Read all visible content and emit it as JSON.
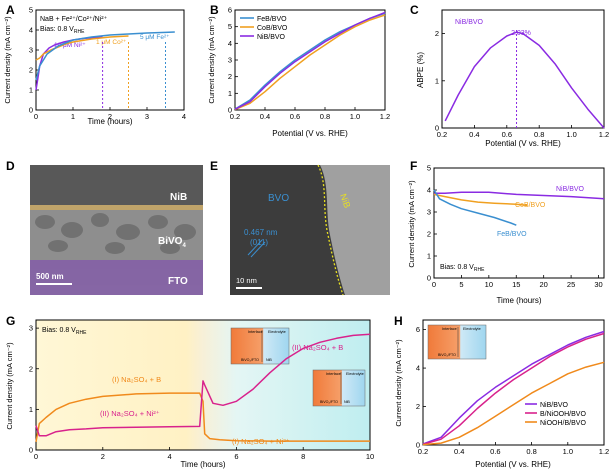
{
  "panels": {
    "A": {
      "letter": "A",
      "legend": [
        "NaB + Fe²⁺/Co²⁺/Ni²⁺",
        "Bias: 0.8 V"
      ],
      "legend_sub": "RHE",
      "labels": [
        "10 μM Ni²⁺",
        "1 μM Co²⁺",
        "5 μM Fe²⁺"
      ],
      "xlabel": "Time (hours)",
      "ylabel": "Current density (mA cm⁻²)",
      "xticks": [
        "0",
        "1",
        "2",
        "3",
        "4"
      ],
      "yticks": [
        "0",
        "1",
        "2",
        "3",
        "4",
        "5"
      ]
    },
    "B": {
      "letter": "B",
      "legend": [
        "FeB/BVO",
        "CoB/BVO",
        "NiB/BVO"
      ],
      "xlabel": "Potential (V vs. RHE)",
      "ylabel": "Current density (mA cm⁻²)",
      "xticks": [
        "0.2",
        "0.4",
        "0.6",
        "0.8",
        "1.0",
        "1.2"
      ],
      "yticks": [
        "0",
        "1",
        "2",
        "3",
        "4",
        "5",
        "6"
      ]
    },
    "C": {
      "letter": "C",
      "label": "NiB/BVO",
      "peak_label": "2.03%",
      "xlabel": "Potential (V vs. RHE)",
      "ylabel": "ABPE (%)",
      "xticks": [
        "0.2",
        "0.4",
        "0.6",
        "0.8",
        "1.0",
        "1.2"
      ],
      "yticks": [
        "0",
        "1",
        "2"
      ]
    },
    "D": {
      "letter": "D",
      "labels": [
        "NiB",
        "BiVO",
        "FTO"
      ],
      "bivo_sub": "4",
      "scale": "500 nm"
    },
    "E": {
      "letter": "E",
      "labels": [
        "BVO",
        "NiB",
        "0.467 nm",
        "(011)"
      ],
      "scale": "10 nm"
    },
    "F": {
      "letter": "F",
      "labels": [
        "NiB/BVO",
        "CoB/BVO",
        "FeB/BVO"
      ],
      "bias": "Bias: 0.8 V",
      "bias_sub": "RHE",
      "xlabel": "Time (hours)",
      "ylabel": "Current density (mA cm⁻²)",
      "xticks": [
        "0",
        "5",
        "10",
        "15",
        "20",
        "25",
        "30"
      ],
      "yticks": [
        "0",
        "1",
        "2",
        "3",
        "4",
        "5"
      ]
    },
    "G": {
      "letter": "G",
      "bias": "Bias: 0.8 V",
      "bias_sub": "RHE",
      "labels": [
        "(I) Na₂SO₄ + B",
        "(II) Na₂SO₄ + Ni²⁺",
        "(II) Na₂SO₄ + B",
        "(I) Na₂SO₄ + Ni²⁺"
      ],
      "inset_labels": [
        "Interface",
        "Electrolyte",
        "BiVO₄/FTO",
        "NiB"
      ],
      "xlabel": "Time (hours)",
      "ylabel": "Current density (mA cm⁻²)",
      "xticks": [
        "0",
        "2",
        "4",
        "6",
        "8",
        "10"
      ],
      "yticks": [
        "0",
        "1",
        "2",
        "3"
      ]
    },
    "H": {
      "letter": "H",
      "legend": [
        "NiB/BVO",
        "B/NiOOH/BVO",
        "NiOOH/B/BVO"
      ],
      "inset_labels": [
        "Interface",
        "Electrolyte",
        "BiVO₄/FTO"
      ],
      "xlabel": "Potential (V vs. RHE)",
      "ylabel": "Current density (mA cm⁻²)",
      "xticks": [
        "0.2",
        "0.4",
        "0.6",
        "0.8",
        "1.0",
        "1.2"
      ],
      "yticks": [
        "0",
        "2",
        "4",
        "6"
      ]
    }
  },
  "colors": {
    "fe": "#3a8fd0",
    "co": "#f0a020",
    "ni": "#8a2be2",
    "g_orange": "#f08a1c",
    "g_magenta": "#d8228c"
  },
  "chart_data": [
    {
      "panel": "A",
      "type": "line",
      "xlim": [
        0,
        4
      ],
      "ylim": [
        0,
        5
      ],
      "series": [
        {
          "name": "10 μM Ni²⁺",
          "color": "#8a2be2",
          "x": [
            0,
            0.05,
            0.1,
            0.2,
            0.35,
            0.5,
            0.75,
            1.0,
            1.3,
            1.6,
            1.8
          ],
          "y": [
            1.0,
            1.6,
            2.2,
            2.8,
            3.1,
            3.25,
            3.4,
            3.5,
            3.58,
            3.62,
            3.65
          ]
        },
        {
          "name": "1 μM Co²⁺",
          "color": "#f0a020",
          "x": [
            0,
            0.1,
            0.2,
            0.4,
            0.6,
            0.8,
            1.0,
            1.5,
            2.0,
            2.5
          ],
          "y": [
            2.5,
            2.6,
            2.8,
            3.0,
            3.15,
            3.3,
            3.4,
            3.55,
            3.65,
            3.7
          ]
        },
        {
          "name": "5 μM Fe²⁺",
          "color": "#3a8fd0",
          "x": [
            0,
            0.1,
            0.3,
            0.6,
            1.0,
            1.5,
            2.0,
            2.5,
            3.0,
            3.5,
            3.75
          ],
          "y": [
            1.5,
            2.2,
            2.8,
            3.2,
            3.5,
            3.65,
            3.75,
            3.8,
            3.85,
            3.88,
            3.9
          ]
        }
      ],
      "vlines": [
        {
          "x": 1.8,
          "color": "#8a2be2"
        },
        {
          "x": 2.5,
          "color": "#f0a020"
        },
        {
          "x": 3.5,
          "color": "#3a8fd0"
        }
      ]
    },
    {
      "panel": "B",
      "type": "line",
      "xlim": [
        0.2,
        1.2
      ],
      "ylim": [
        0,
        6
      ],
      "series": [
        {
          "name": "FeB/BVO",
          "color": "#3a8fd0",
          "x": [
            0.2,
            0.3,
            0.4,
            0.5,
            0.6,
            0.7,
            0.8,
            0.9,
            1.0,
            1.1,
            1.2
          ],
          "y": [
            0.05,
            0.6,
            1.5,
            2.3,
            3.0,
            3.6,
            4.2,
            4.7,
            5.1,
            5.5,
            5.8
          ]
        },
        {
          "name": "CoB/BVO",
          "color": "#f0a020",
          "x": [
            0.2,
            0.3,
            0.4,
            0.5,
            0.6,
            0.7,
            0.8,
            0.9,
            1.0,
            1.1,
            1.2
          ],
          "y": [
            0.03,
            0.4,
            1.1,
            1.9,
            2.6,
            3.3,
            3.9,
            4.5,
            5.0,
            5.4,
            5.7
          ]
        },
        {
          "name": "NiB/BVO",
          "color": "#8a2be2",
          "x": [
            0.2,
            0.3,
            0.4,
            0.5,
            0.6,
            0.7,
            0.8,
            0.9,
            1.0,
            1.1,
            1.2
          ],
          "y": [
            0.05,
            0.5,
            1.4,
            2.2,
            2.9,
            3.5,
            4.1,
            4.6,
            5.1,
            5.5,
            5.85
          ]
        }
      ]
    },
    {
      "panel": "C",
      "type": "line",
      "xlim": [
        0.2,
        1.2
      ],
      "ylim": [
        0,
        2.5
      ],
      "series": [
        {
          "name": "NiB/BVO",
          "color": "#8a2be2",
          "x": [
            0.22,
            0.3,
            0.4,
            0.5,
            0.6,
            0.66,
            0.7,
            0.8,
            0.9,
            1.0,
            1.1,
            1.2
          ],
          "y": [
            0.15,
            0.7,
            1.3,
            1.7,
            1.95,
            2.03,
            2.0,
            1.75,
            1.35,
            0.85,
            0.4,
            0.0
          ]
        }
      ],
      "vlines": [
        {
          "x": 0.66,
          "color": "#8a2be2"
        }
      ]
    },
    {
      "panel": "F",
      "type": "line",
      "xlim": [
        0,
        31
      ],
      "ylim": [
        0,
        5
      ],
      "series": [
        {
          "name": "NiB/BVO",
          "color": "#8a2be2",
          "x": [
            0,
            2,
            5,
            10,
            15,
            20,
            25,
            30,
            31
          ],
          "y": [
            3.85,
            3.85,
            3.9,
            3.9,
            3.8,
            3.75,
            3.7,
            3.62,
            3.6
          ]
        },
        {
          "name": "CoB/BVO",
          "color": "#f0a020",
          "x": [
            0,
            2,
            5,
            8,
            11,
            15,
            17
          ],
          "y": [
            3.8,
            3.7,
            3.55,
            3.45,
            3.4,
            3.35,
            3.3
          ]
        },
        {
          "name": "FeB/BVO",
          "color": "#3a8fd0",
          "x": [
            0,
            1,
            3,
            5,
            8,
            11,
            14,
            15
          ],
          "y": [
            4.0,
            3.6,
            3.35,
            3.15,
            2.95,
            2.75,
            2.5,
            2.4
          ]
        }
      ]
    },
    {
      "panel": "G",
      "type": "line",
      "xlim": [
        0,
        10
      ],
      "ylim": [
        0,
        3.2
      ],
      "series": [
        {
          "name": "(I) Na₂SO₄ + B",
          "color": "#f08a1c",
          "x": [
            0,
            0.1,
            0.3,
            0.6,
            1.0,
            1.5,
            2.0,
            3.0,
            4.0,
            4.9,
            5.0,
            5.05,
            5.2,
            5.5,
            6,
            7,
            8,
            9,
            10
          ],
          "y": [
            0.2,
            0.65,
            0.8,
            1.0,
            1.15,
            1.25,
            1.32,
            1.38,
            1.4,
            1.4,
            1.2,
            0.4,
            0.28,
            0.25,
            0.23,
            0.22,
            0.22,
            0.22,
            0.22
          ]
        },
        {
          "name": "(II) Na₂SO₄ + Ni²⁺",
          "color": "#d8228c",
          "x": [
            0,
            0.1,
            0.3,
            0.6,
            1.0,
            1.5,
            2,
            3,
            4,
            4.9,
            5.0,
            5.05,
            5.3,
            5.6,
            6,
            6.5,
            7,
            7.5,
            8,
            8.5,
            9,
            9.5,
            10
          ],
          "y": [
            0.6,
            0.35,
            0.35,
            0.45,
            0.5,
            0.52,
            0.55,
            0.56,
            0.57,
            0.58,
            1.7,
            1.6,
            1.15,
            1.1,
            1.2,
            1.5,
            1.9,
            2.25,
            2.5,
            2.65,
            2.75,
            2.82,
            2.85
          ]
        }
      ]
    },
    {
      "panel": "H",
      "type": "line",
      "xlim": [
        0.2,
        1.2
      ],
      "ylim": [
        0,
        6.5
      ],
      "series": [
        {
          "name": "NiB/BVO",
          "color": "#8a2be2",
          "x": [
            0.2,
            0.3,
            0.4,
            0.5,
            0.6,
            0.7,
            0.8,
            0.9,
            1.0,
            1.1,
            1.2
          ],
          "y": [
            0.05,
            0.4,
            1.4,
            2.3,
            3.0,
            3.6,
            4.2,
            4.7,
            5.2,
            5.6,
            5.9
          ]
        },
        {
          "name": "B/NiOOH/BVO",
          "color": "#d8228c",
          "x": [
            0.2,
            0.3,
            0.4,
            0.5,
            0.6,
            0.7,
            0.8,
            0.9,
            1.0,
            1.1,
            1.2
          ],
          "y": [
            0.03,
            0.3,
            1.0,
            1.9,
            2.7,
            3.4,
            4.0,
            4.6,
            5.1,
            5.5,
            5.8
          ]
        },
        {
          "name": "NiOOH/B/BVO",
          "color": "#f08a1c",
          "x": [
            0.2,
            0.3,
            0.4,
            0.5,
            0.6,
            0.7,
            0.8,
            0.9,
            1.0,
            1.1,
            1.2
          ],
          "y": [
            0.02,
            0.1,
            0.4,
            0.9,
            1.5,
            2.1,
            2.7,
            3.2,
            3.7,
            4.05,
            4.3
          ]
        }
      ]
    }
  ]
}
